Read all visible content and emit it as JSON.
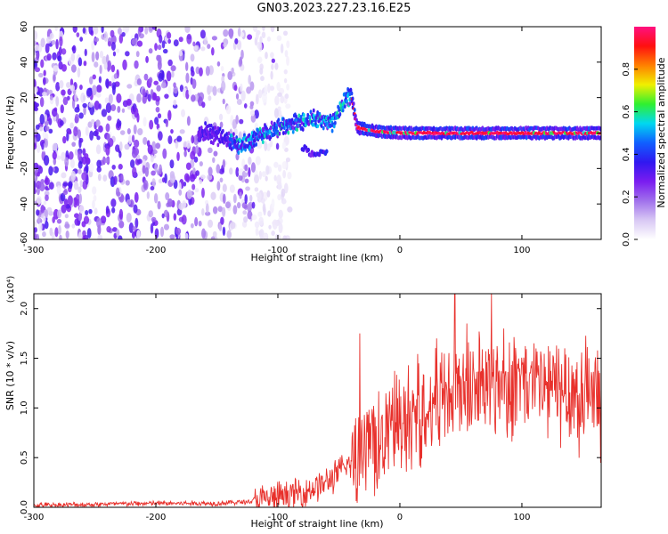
{
  "title": "GN03.2023.227.23.16.E25",
  "colors": {
    "snr_line": "#e8312c",
    "colormap": [
      "#ffffff",
      "#d8c8f4",
      "#a070ec",
      "#7a1cf0",
      "#3018f0",
      "#1060ff",
      "#00d8f0",
      "#30f030",
      "#f0f000",
      "#ff8000",
      "#ff1010",
      "#ff1080"
    ]
  },
  "chart_data": [
    {
      "type": "heatmap",
      "description_layer": "spectrogram",
      "xlabel": "Height of straight line (km)",
      "ylabel": "Frequency (Hz)",
      "xlim": [
        -300,
        165
      ],
      "ylim": [
        -60,
        60
      ],
      "xticks": [
        -300,
        -200,
        -100,
        0,
        100
      ],
      "xtick_labels": [
        "-300",
        "-200",
        "-100",
        "0",
        "100"
      ],
      "yticks": [
        -60,
        -40,
        -20,
        0,
        20,
        40,
        60
      ],
      "ytick_labels": [
        "-60",
        "-40",
        "-20",
        "0",
        "20",
        "40",
        "60"
      ],
      "colorbar": {
        "label": "Normalized spectral amplitude",
        "range": [
          0,
          1
        ],
        "ticks": [
          0.0,
          0.2,
          0.4,
          0.6,
          0.8
        ],
        "tick_labels": [
          "0.0",
          "0.2",
          "0.4",
          "0.6",
          "0.8"
        ]
      },
      "features": {
        "broadband_noise_x": [
          -300,
          -120
        ],
        "ridge": [
          [
            -160,
            1
          ],
          [
            -130,
            -7
          ],
          [
            -110,
            0
          ],
          [
            -90,
            5
          ],
          [
            -70,
            8
          ],
          [
            -55,
            6
          ],
          [
            -45,
            18
          ],
          [
            -40,
            22
          ],
          [
            -35,
            3
          ],
          [
            -20,
            1
          ],
          [
            0,
            0
          ],
          [
            100,
            0
          ],
          [
            165,
            0
          ]
        ],
        "side_branch": [
          [
            -80,
            -8
          ],
          [
            -70,
            -13
          ],
          [
            -60,
            -10
          ]
        ],
        "strong_band_x": [
          -40,
          165
        ]
      }
    },
    {
      "type": "line",
      "xlabel": "Height of straight line (km)",
      "ylabel": "SNR (10 * v/v)",
      "y_multiplier": "(x10⁴)",
      "xlim": [
        -300,
        165
      ],
      "ylim": [
        0,
        2.15
      ],
      "xticks": [
        -300,
        -200,
        -100,
        0,
        100
      ],
      "xtick_labels": [
        "-300",
        "-200",
        "-100",
        "0",
        "100"
      ],
      "yticks": [
        0,
        0.5,
        1.0,
        1.5,
        2.0
      ],
      "ytick_labels": [
        "0.0",
        "0.5",
        "1.0",
        "1.5",
        "2.0"
      ],
      "series": [
        {
          "trend_x": [
            -300,
            -250,
            -200,
            -150,
            -120,
            -100,
            -80,
            -60,
            -50,
            -40,
            -30,
            -20,
            -10,
            0,
            20,
            40,
            60,
            80,
            100,
            120,
            140,
            165
          ],
          "trend_y": [
            0.02,
            0.03,
            0.04,
            0.04,
            0.06,
            0.1,
            0.15,
            0.25,
            0.35,
            0.45,
            0.55,
            0.65,
            0.75,
            0.85,
            1.0,
            1.15,
            1.2,
            1.25,
            1.25,
            1.2,
            1.15,
            1.1
          ],
          "peaks": [
            [
              -33,
              1.75
            ],
            [
              45,
              2.15
            ],
            [
              75,
              2.15
            ],
            [
              30,
              1.7
            ],
            [
              55,
              1.85
            ],
            [
              85,
              1.8
            ],
            [
              110,
              1.65
            ],
            [
              135,
              1.6
            ],
            [
              155,
              1.5
            ]
          ]
        }
      ]
    }
  ]
}
